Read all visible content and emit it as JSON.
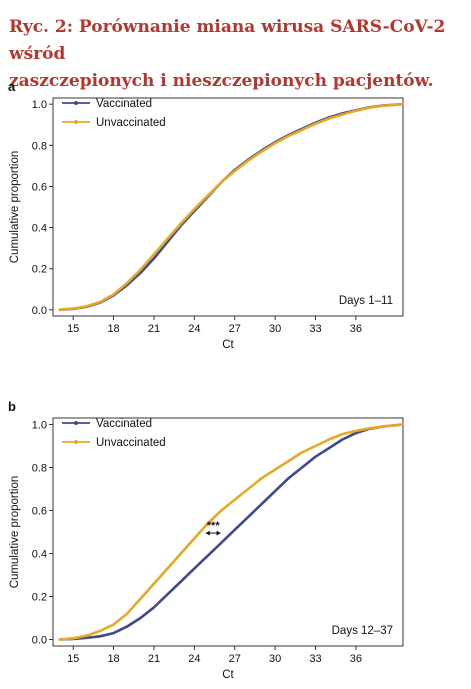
{
  "title": {
    "line1": "Ryc. 2: Porównanie miana wirusa SARS-CoV-2 wśród",
    "line2": " zaszczepionych i nieszczepionych pacjentów."
  },
  "colors": {
    "vaccinated": "#3f4a8c",
    "unvaccinated": "#e9a823",
    "title": "#b8352d"
  },
  "chart_data": [
    {
      "type": "line",
      "panel_label": "a",
      "annotation": "Days 1–11",
      "xlabel": "Ct",
      "ylabel": "Cumulative proportion",
      "xlim": [
        13.5,
        39.5
      ],
      "ylim": [
        -0.03,
        1.03
      ],
      "xticks": [
        15,
        18,
        21,
        24,
        27,
        30,
        33,
        36
      ],
      "yticks": [
        0.0,
        0.2,
        0.4,
        0.6,
        0.8,
        1.0
      ],
      "ytick_labels": [
        "0.0",
        "0.2",
        "0.4",
        "0.6",
        "0.8",
        "1.0"
      ],
      "legend_position": "top-left",
      "grid": false,
      "series": [
        {
          "name": "Vaccinated",
          "color": "#3f4a8c",
          "x": [
            14,
            15,
            16,
            17,
            18,
            19,
            20,
            21,
            22,
            23,
            24,
            25,
            26,
            27,
            28,
            29,
            30,
            31,
            32,
            33,
            34,
            35,
            36,
            37,
            38,
            39.5
          ],
          "y": [
            0.0,
            0.005,
            0.015,
            0.035,
            0.07,
            0.12,
            0.18,
            0.25,
            0.33,
            0.41,
            0.48,
            0.55,
            0.62,
            0.68,
            0.73,
            0.775,
            0.815,
            0.85,
            0.88,
            0.91,
            0.935,
            0.955,
            0.97,
            0.985,
            0.993,
            1.0
          ]
        },
        {
          "name": "Unvaccinated",
          "color": "#e9a823",
          "x": [
            14,
            15,
            16,
            17,
            18,
            19,
            20,
            21,
            22,
            23,
            24,
            25,
            26,
            27,
            28,
            29,
            30,
            31,
            32,
            33,
            34,
            35,
            36,
            37,
            38,
            39.5
          ],
          "y": [
            0.0,
            0.006,
            0.017,
            0.038,
            0.075,
            0.13,
            0.195,
            0.27,
            0.345,
            0.42,
            0.49,
            0.555,
            0.62,
            0.675,
            0.725,
            0.77,
            0.81,
            0.845,
            0.875,
            0.905,
            0.93,
            0.95,
            0.968,
            0.983,
            0.992,
            1.0
          ]
        }
      ]
    },
    {
      "type": "line",
      "panel_label": "b",
      "annotation": "Days 12–37",
      "significance": "***",
      "xlabel": "Ct",
      "ylabel": "Cumulative proportion",
      "xlim": [
        13.5,
        39.5
      ],
      "ylim": [
        -0.03,
        1.03
      ],
      "xticks": [
        15,
        18,
        21,
        24,
        27,
        30,
        33,
        36
      ],
      "yticks": [
        0.0,
        0.2,
        0.4,
        0.6,
        0.8,
        1.0
      ],
      "ytick_labels": [
        "0.0",
        "0.2",
        "0.4",
        "0.6",
        "0.8",
        "1.0"
      ],
      "legend_position": "top-left",
      "grid": false,
      "series": [
        {
          "name": "Vaccinated",
          "color": "#3f4a8c",
          "x": [
            14,
            15,
            16,
            17,
            18,
            19,
            20,
            21,
            22,
            23,
            24,
            25,
            26,
            27,
            28,
            29,
            30,
            31,
            32,
            33,
            34,
            35,
            36,
            37,
            38,
            39.5
          ],
          "y": [
            0.0,
            0.003,
            0.008,
            0.015,
            0.03,
            0.06,
            0.1,
            0.15,
            0.21,
            0.27,
            0.33,
            0.39,
            0.45,
            0.51,
            0.57,
            0.63,
            0.69,
            0.75,
            0.8,
            0.85,
            0.89,
            0.93,
            0.96,
            0.98,
            0.99,
            1.0
          ]
        },
        {
          "name": "Unvaccinated",
          "color": "#e9a823",
          "x": [
            14,
            15,
            16,
            17,
            18,
            19,
            20,
            21,
            22,
            23,
            24,
            25,
            26,
            27,
            28,
            29,
            30,
            31,
            32,
            33,
            34,
            35,
            36,
            37,
            38,
            39.5
          ],
          "y": [
            0.0,
            0.006,
            0.018,
            0.04,
            0.07,
            0.12,
            0.19,
            0.26,
            0.33,
            0.4,
            0.47,
            0.54,
            0.6,
            0.65,
            0.7,
            0.75,
            0.79,
            0.83,
            0.87,
            0.9,
            0.93,
            0.955,
            0.97,
            0.982,
            0.99,
            1.0
          ]
        }
      ]
    }
  ]
}
